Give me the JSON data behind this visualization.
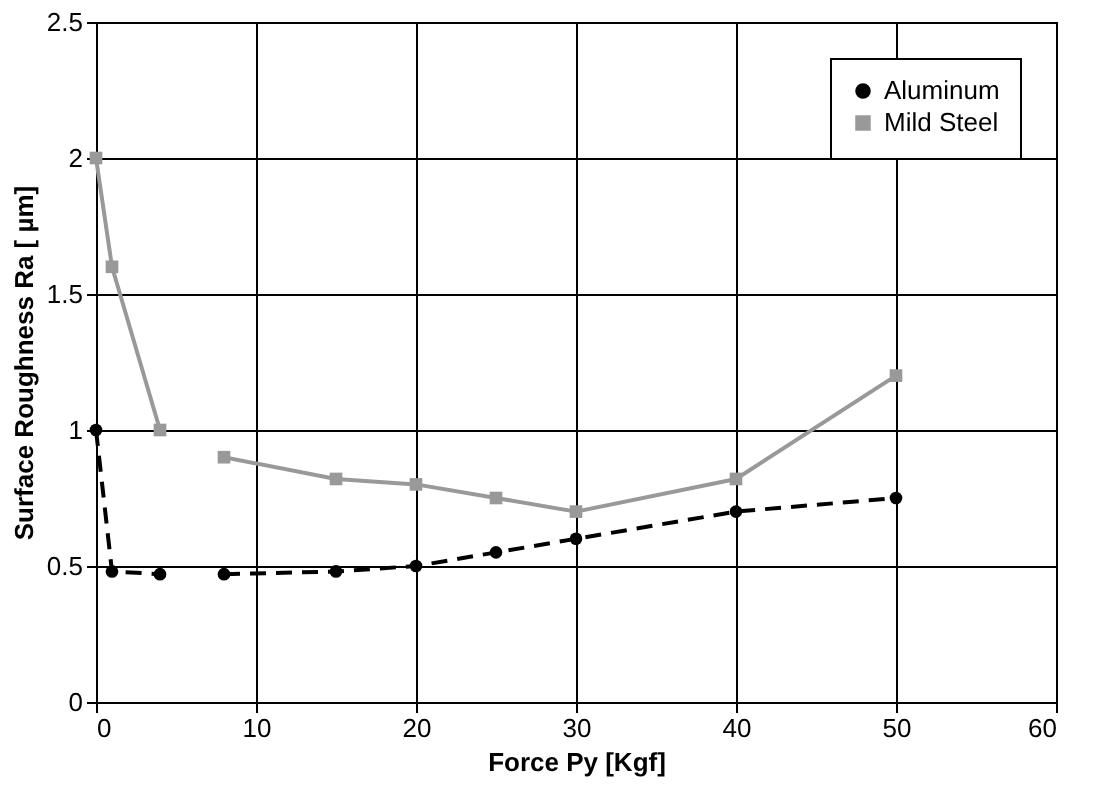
{
  "chart_data": {
    "type": "line",
    "xlabel": "Force Py [Kgf]",
    "ylabel": "Surface Roughness Ra [ µm]",
    "x": [
      0,
      1,
      4,
      6,
      8,
      15,
      20,
      25,
      30,
      40,
      50
    ],
    "series": [
      {
        "name": "Aluminum",
        "color": "#000000",
        "marker": "circle",
        "line_style": "dashed",
        "values": [
          1.0,
          0.48,
          0.47,
          null,
          0.47,
          0.48,
          0.5,
          0.55,
          0.6,
          0.7,
          0.75
        ]
      },
      {
        "name": "Mild Steel",
        "color": "#999999",
        "marker": "square",
        "line_style": "solid",
        "values": [
          2.0,
          1.6,
          1.0,
          null,
          0.9,
          0.82,
          0.8,
          0.75,
          0.7,
          0.82,
          1.2
        ]
      }
    ],
    "xlim": [
      0,
      60
    ],
    "xticks": [
      0,
      10,
      20,
      30,
      40,
      50,
      60
    ],
    "ylim": [
      0,
      2.5
    ],
    "yticks": [
      0,
      0.5,
      1,
      1.5,
      2,
      2.5
    ],
    "grid": true,
    "legend": "top right"
  }
}
